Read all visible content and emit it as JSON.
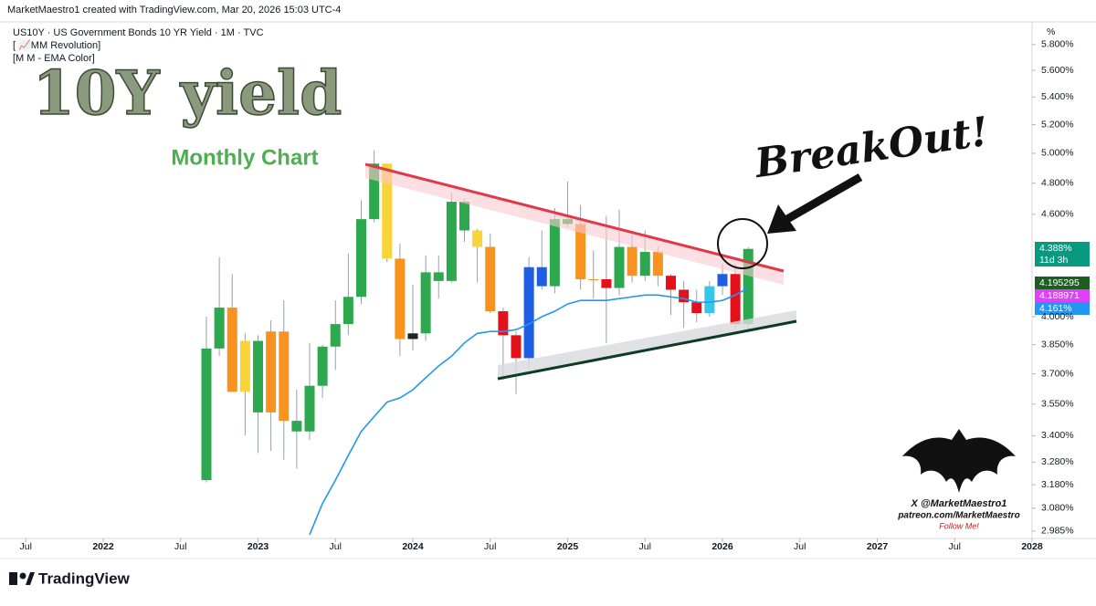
{
  "header": {
    "author_line": "MarketMaestro1 created with TradingView.com, Mar 20, 2026 15:03 UTC-4",
    "symbol_line": "US10Y · US Government Bonds 10 YR Yield · 1M · TVC",
    "indicators": [
      "[ 📈MM Revolution]",
      "[M M - EMA Color]"
    ]
  },
  "annotations": {
    "big_title": "10Y yield",
    "subtitle": "Monthly Chart",
    "callout": "BreakOut!",
    "signature": [
      "X @MarketMaestro1",
      "patreon.com/MarketMaestro",
      "Follow Me!"
    ]
  },
  "footer": {
    "brand": "TradingView"
  },
  "price_labels": {
    "unit": "%",
    "last": "4.388%",
    "countdown": "11d 3h",
    "ema_a": "4.195295",
    "ema_b": "4.188971",
    "ema_c": "4.161%"
  },
  "chart_data": {
    "type": "candlestick",
    "log_scale": true,
    "x": [
      "2022-09",
      "2022-10",
      "2022-11",
      "2022-12",
      "2023-01",
      "2023-02",
      "2023-03",
      "2023-04",
      "2023-05",
      "2023-06",
      "2023-07",
      "2023-08",
      "2023-09",
      "2023-10",
      "2023-11",
      "2023-12",
      "2024-01",
      "2024-02",
      "2024-03",
      "2024-04",
      "2024-05",
      "2024-06",
      "2024-07",
      "2024-08",
      "2024-09",
      "2024-10",
      "2024-11",
      "2024-12",
      "2025-01",
      "2025-02",
      "2025-03",
      "2025-04",
      "2025-05",
      "2025-06",
      "2025-07",
      "2025-08",
      "2025-09",
      "2025-10",
      "2025-11",
      "2025-12",
      "2026-01",
      "2026-02",
      "2026-03"
    ],
    "open": [
      3.2,
      3.83,
      4.05,
      3.61,
      3.87,
      3.51,
      3.92,
      3.47,
      3.42,
      3.64,
      3.84,
      3.96,
      4.11,
      4.57,
      4.93,
      4.33,
      3.88,
      3.91,
      4.25,
      4.2,
      4.68,
      4.5,
      4.4,
      4.03,
      3.9,
      3.78,
      4.28,
      4.17,
      4.57,
      4.54,
      4.21,
      4.21,
      4.16,
      4.4,
      4.23,
      4.37,
      4.23,
      4.15,
      4.08,
      4.02,
      4.17,
      4.24,
      3.96
    ],
    "high": [
      4.0,
      4.34,
      4.24,
      3.91,
      3.9,
      3.98,
      4.09,
      3.62,
      3.86,
      3.85,
      4.09,
      4.36,
      4.69,
      5.02,
      4.93,
      4.42,
      4.18,
      4.35,
      4.35,
      4.74,
      4.7,
      4.51,
      4.48,
      4.05,
      3.92,
      4.34,
      4.5,
      4.64,
      4.81,
      4.66,
      4.38,
      4.59,
      4.63,
      4.48,
      4.5,
      4.4,
      4.24,
      4.2,
      4.15,
      4.2,
      4.3,
      4.3,
      4.4
    ],
    "low": [
      3.19,
      3.79,
      3.61,
      3.4,
      3.32,
      3.33,
      3.29,
      3.25,
      3.38,
      3.58,
      3.72,
      3.9,
      4.07,
      4.55,
      4.31,
      3.79,
      3.82,
      3.87,
      4.1,
      4.19,
      4.43,
      4.19,
      4.02,
      3.67,
      3.6,
      3.73,
      4.15,
      4.13,
      4.52,
      4.15,
      4.1,
      3.86,
      4.12,
      4.19,
      4.2,
      4.17,
      4.01,
      3.94,
      3.97,
      4.0,
      4.12,
      3.94,
      3.93
    ],
    "close": [
      3.83,
      4.05,
      3.61,
      3.87,
      3.51,
      3.92,
      3.47,
      3.42,
      3.64,
      3.84,
      3.96,
      4.11,
      4.57,
      4.93,
      4.33,
      3.88,
      3.91,
      4.25,
      4.2,
      4.68,
      4.5,
      4.4,
      4.03,
      3.9,
      3.78,
      4.28,
      4.17,
      4.57,
      4.54,
      4.21,
      4.21,
      4.16,
      4.4,
      4.23,
      4.37,
      4.23,
      4.15,
      4.08,
      4.02,
      4.17,
      4.24,
      3.96,
      4.388
    ],
    "colors": [
      "#2ea84f",
      "#2ea84f",
      "#f7931e",
      "#f9d33a",
      "#2ea84f",
      "#f7931e",
      "#f7931e",
      "#2ea84f",
      "#2ea84f",
      "#2ea84f",
      "#2ea84f",
      "#2ea84f",
      "#2ea84f",
      "#2ea84f",
      "#f9d33a",
      "#f7931e",
      "#222222",
      "#2ea84f",
      "#2ea84f",
      "#2ea84f",
      "#2ea84f",
      "#f9d33a",
      "#f7931e",
      "#e3121a",
      "#e3121a",
      "#1e5ee0",
      "#1e5ee0",
      "#2ea84f",
      "#2ea84f",
      "#f7931e",
      "#f7931e",
      "#e3121a",
      "#2ea84f",
      "#f7931e",
      "#2ea84f",
      "#f7931e",
      "#e3121a",
      "#e3121a",
      "#e3121a",
      "#36c6ea",
      "#1e5ee0",
      "#e3121a",
      "#2ea84f"
    ],
    "ema": {
      "color": "#2196f3",
      "values": [
        null,
        null,
        null,
        null,
        null,
        null,
        null,
        null,
        2.97,
        3.1,
        3.2,
        3.31,
        3.42,
        3.49,
        3.56,
        3.58,
        3.62,
        3.68,
        3.74,
        3.79,
        3.86,
        3.91,
        3.92,
        3.92,
        3.93,
        3.96,
        4.0,
        4.03,
        4.07,
        4.09,
        4.09,
        4.09,
        4.1,
        4.11,
        4.12,
        4.12,
        4.11,
        4.1,
        4.08,
        4.08,
        4.09,
        4.12,
        4.161
      ]
    },
    "xlim": [
      "2021-05",
      "2028-01"
    ],
    "xticks": [
      {
        "value": "2021-07",
        "label": "Jul"
      },
      {
        "value": "2022-01",
        "label": "2022"
      },
      {
        "value": "2022-07",
        "label": "Jul"
      },
      {
        "value": "2023-01",
        "label": "2023"
      },
      {
        "value": "2023-07",
        "label": "Jul"
      },
      {
        "value": "2024-01",
        "label": "2024"
      },
      {
        "value": "2024-07",
        "label": "Jul"
      },
      {
        "value": "2025-01",
        "label": "2025"
      },
      {
        "value": "2025-07",
        "label": "Jul"
      },
      {
        "value": "2026-01",
        "label": "2026"
      },
      {
        "value": "2026-07",
        "label": "Jul"
      },
      {
        "value": "2027-01",
        "label": "2027"
      },
      {
        "value": "2027-07",
        "label": "Jul"
      },
      {
        "value": "2028-01",
        "label": "2028"
      }
    ],
    "ylim": [
      2.955,
      5.975
    ],
    "yticks": [
      {
        "value": 5.8,
        "label": "5.800%"
      },
      {
        "value": 5.6,
        "label": "5.600%"
      },
      {
        "value": 5.4,
        "label": "5.400%"
      },
      {
        "value": 5.2,
        "label": "5.200%"
      },
      {
        "value": 5.0,
        "label": "5.000%"
      },
      {
        "value": 4.8,
        "label": "4.800%"
      },
      {
        "value": 4.6,
        "label": "4.600%"
      },
      {
        "value": 4.0,
        "label": "4.000%"
      },
      {
        "value": 3.85,
        "label": "3.850%"
      },
      {
        "value": 3.7,
        "label": "3.700%"
      },
      {
        "value": 3.55,
        "label": "3.550%"
      },
      {
        "value": 3.4,
        "label": "3.400%"
      },
      {
        "value": 3.28,
        "label": "3.280%"
      },
      {
        "value": 3.18,
        "label": "3.180%"
      },
      {
        "value": 3.08,
        "label": "3.080%"
      },
      {
        "value": 2.985,
        "label": "2.985%"
      }
    ]
  }
}
